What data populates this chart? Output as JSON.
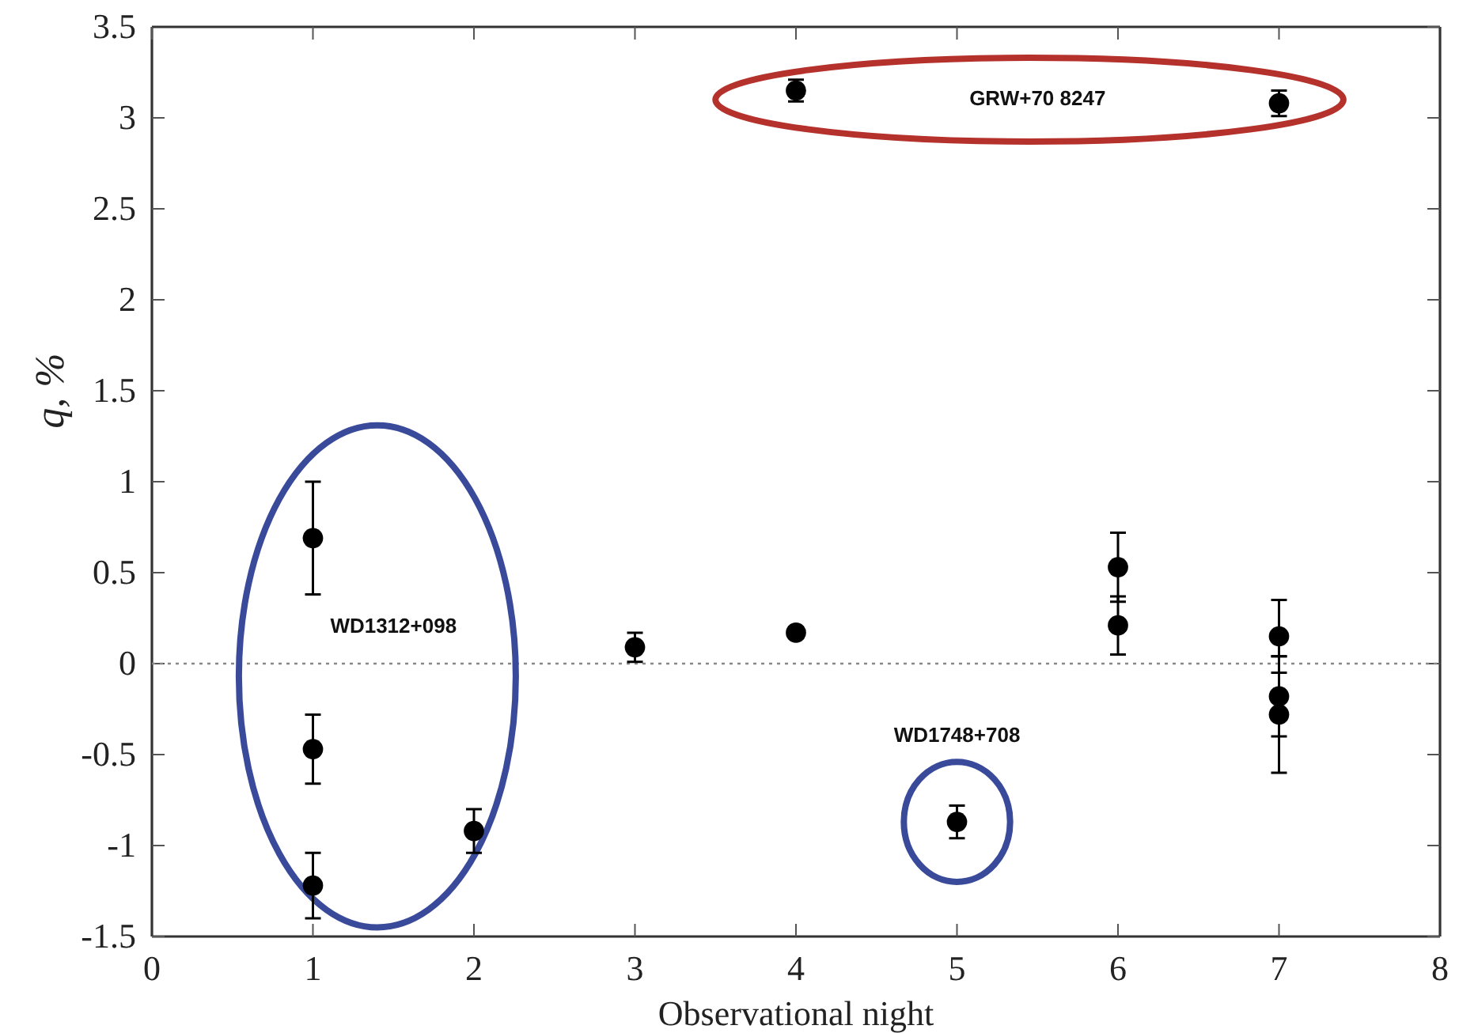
{
  "chart_data": {
    "type": "scatter",
    "xlabel": "Observational night",
    "ylabel": "q, %",
    "x": [
      1,
      1,
      1,
      2,
      3,
      4,
      4,
      5,
      6,
      6,
      7,
      7,
      7,
      7
    ],
    "series": [
      {
        "color": "#000000",
        "values": [
          0.69,
          -0.47,
          -1.22,
          -0.92,
          0.09,
          0.17,
          3.15,
          -0.87,
          0.53,
          0.21,
          0.15,
          -0.18,
          -0.28,
          3.08
        ],
        "errors": [
          0.31,
          0.19,
          0.18,
          0.12,
          0.08,
          0.03,
          0.06,
          0.09,
          0.19,
          0.16,
          0.2,
          0.22,
          0.32,
          0.07
        ]
      }
    ],
    "xlim": [
      0,
      8
    ],
    "xticks": [
      0,
      1,
      2,
      3,
      4,
      5,
      6,
      7,
      8
    ],
    "ylim": [
      -1.5,
      3.5
    ],
    "yticks": [
      -1.5,
      -1,
      -0.5,
      0,
      0.5,
      1,
      1.5,
      2,
      2.5,
      3,
      3.5
    ],
    "marker": "circle",
    "grid": false,
    "ref_lines": [
      {
        "axis": "y",
        "value": 0,
        "color": "#888888",
        "line_style": "dotted"
      }
    ],
    "annotations": [
      "WD1312+098",
      "WD1748+708",
      "GRW+70 8247"
    ]
  }
}
